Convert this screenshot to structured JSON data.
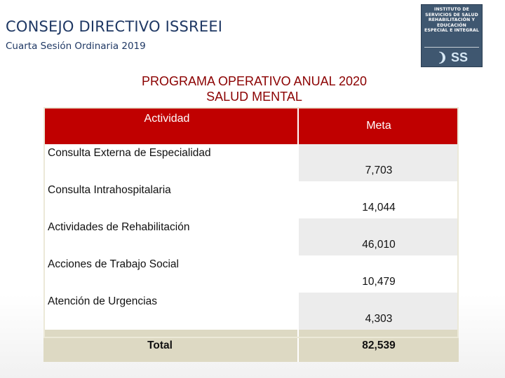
{
  "header": {
    "title": "CONSEJO DIRECTIVO ISSREEI",
    "subtitle": "Cuarta Sesión Ordinaria 2019"
  },
  "logo": {
    "lines": [
      "INSTITUTO DE",
      "SERVICIOS DE SALUD",
      "REHABILITACIÓN Y",
      "EDUCACIÓN",
      "ESPECIAL E INTEGRAL"
    ],
    "mark": "❩ SS"
  },
  "program": {
    "line1": "PROGRAMA OPERATIVO ANUAL 2020",
    "line2": "SALUD MENTAL"
  },
  "table": {
    "headers": {
      "activity": "Actividad",
      "goal": "Meta"
    },
    "rows": [
      {
        "activity": "Consulta Externa de Especialidad",
        "goal": "7,703"
      },
      {
        "activity": "Consulta Intrahospitalaria",
        "goal": "14,044"
      },
      {
        "activity": "Actividades de Rehabilitación",
        "goal": "46,010"
      },
      {
        "activity": "Acciones de Trabajo Social",
        "goal": "10,479"
      },
      {
        "activity": "Atención de Urgencias",
        "goal": "4,303"
      }
    ],
    "total": {
      "label": "Total",
      "goal": "82,539"
    }
  },
  "colors": {
    "header_red": "#c00000",
    "title_blue": "#1f3864",
    "program_red": "#8b0000",
    "total_bg": "#ddd9c3"
  }
}
